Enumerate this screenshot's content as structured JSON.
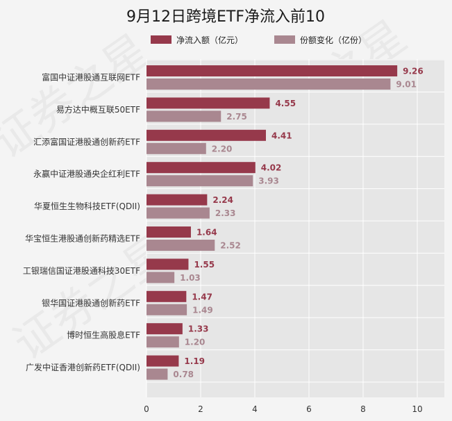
{
  "colors": {
    "series1": "#96394b",
    "series2": "#a98790",
    "plot_bg": "#e6e6e6",
    "grid": "#ffffff"
  },
  "chart_data": {
    "type": "bar",
    "orientation": "horizontal",
    "title": "9月12日跨境ETF净流入前10",
    "categories": [
      "富国中证港股通互联网ETF",
      "易方达中概互联50ETF",
      "汇添富国证港股通创新药ETF",
      "永赢中证港股通央企红利ETF",
      "华夏恒生生物科技ETF(QDII)",
      "华宝恒生港股通创新药精选ETF",
      "工银瑞信国证港股通科技30ETF",
      "银华国证港股通创新药ETF",
      "博时恒生高股息ETF",
      "广发中证香港创新药ETF(QDII)"
    ],
    "series": [
      {
        "name": "净流入额（亿元）",
        "values": [
          9.26,
          4.55,
          4.41,
          4.02,
          2.24,
          1.64,
          1.55,
          1.47,
          1.33,
          1.19
        ]
      },
      {
        "name": "份额变化（亿份）",
        "values": [
          9.01,
          2.75,
          2.2,
          3.93,
          2.33,
          2.52,
          1.03,
          1.49,
          1.2,
          0.78
        ]
      }
    ],
    "value_labels": [
      [
        "9.26",
        "4.55",
        "4.41",
        "4.02",
        "2.24",
        "1.64",
        "1.55",
        "1.47",
        "1.33",
        "1.19"
      ],
      [
        "9.01",
        "2.75",
        "2.20",
        "3.93",
        "2.33",
        "2.52",
        "1.03",
        "1.49",
        "1.20",
        "0.78"
      ]
    ],
    "xticks": [
      0,
      2,
      4,
      6,
      8,
      10
    ],
    "xtick_labels": [
      "0",
      "2",
      "4",
      "6",
      "8",
      "10"
    ],
    "xlim": [
      0,
      11
    ],
    "grid": true,
    "legend_position": "top"
  },
  "watermark": {
    "text": "证券之星"
  }
}
